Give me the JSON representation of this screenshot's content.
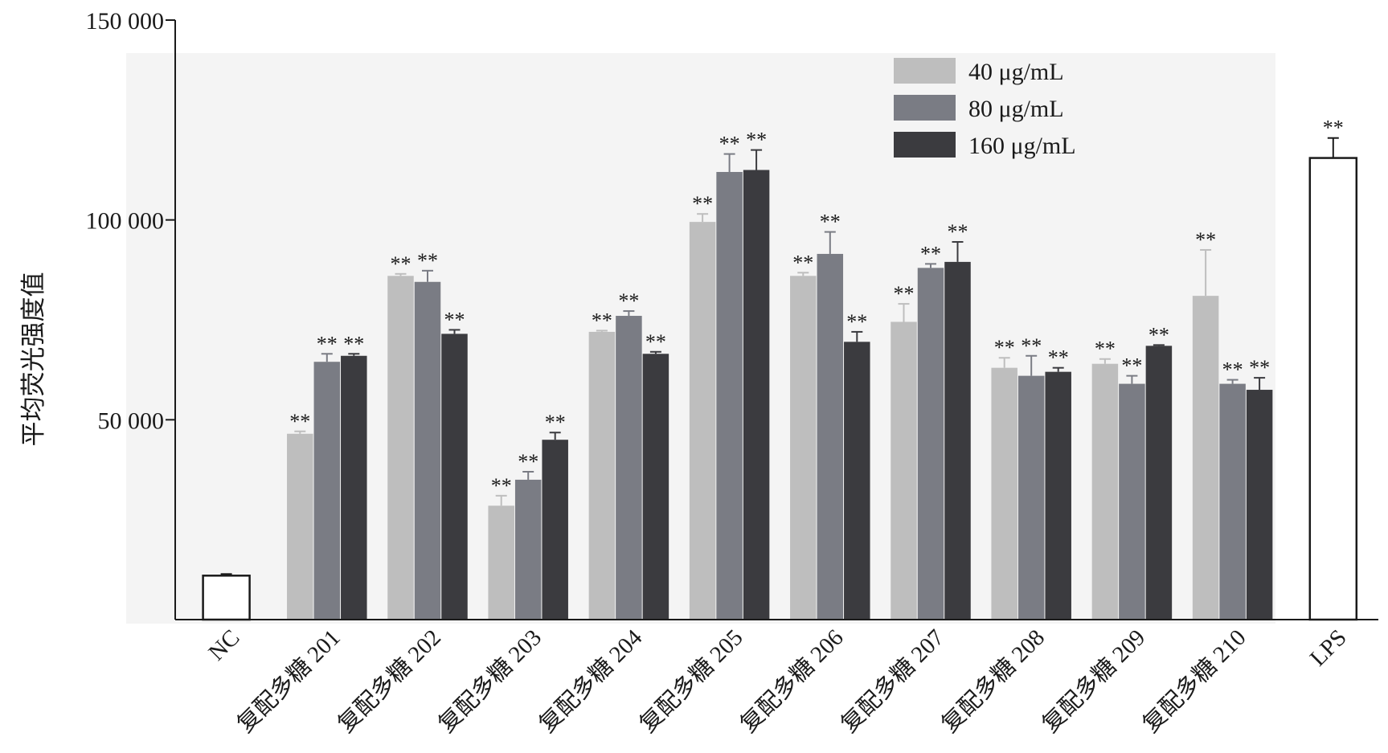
{
  "chart_data": {
    "type": "bar",
    "title": "",
    "xlabel": "",
    "ylabel": "平均荧光强度值",
    "ylim": [
      0,
      150000
    ],
    "yticks": [
      {
        "value": 50000,
        "label": "50 000"
      },
      {
        "value": 100000,
        "label": "100 000"
      },
      {
        "value": 150000,
        "label": "150 000"
      }
    ],
    "categories": [
      "NC",
      "复配多糖 201",
      "复配多糖 202",
      "复配多糖 203",
      "复配多糖 204",
      "复配多糖 205",
      "复配多糖 206",
      "复配多糖 207",
      "复配多糖 208",
      "复配多糖 209",
      "复配多糖 210",
      "LPS"
    ],
    "series": [
      {
        "name": "40 μg/mL",
        "color": "#bebebe",
        "values": [
          null,
          46500,
          86000,
          28500,
          72000,
          99500,
          86000,
          74500,
          63000,
          64000,
          81000,
          null
        ],
        "errors": [
          null,
          600,
          500,
          2500,
          300,
          2000,
          800,
          4500,
          2500,
          1200,
          11500,
          null
        ],
        "sig": [
          null,
          "**",
          "**",
          "**",
          "**",
          "**",
          "**",
          "**",
          "**",
          "**",
          "**",
          null
        ]
      },
      {
        "name": "80 μg/mL",
        "color": "#7a7c84",
        "values": [
          null,
          64500,
          84500,
          35000,
          76000,
          112000,
          91500,
          88000,
          61000,
          59000,
          59000,
          null
        ],
        "errors": [
          null,
          2000,
          2800,
          2000,
          1200,
          4500,
          5500,
          1000,
          5000,
          2000,
          1000,
          null
        ],
        "sig": [
          null,
          "**",
          "**",
          "**",
          "**",
          "**",
          "**",
          "**",
          "**",
          "**",
          "**",
          null
        ]
      },
      {
        "name": "160 μg/mL",
        "color": "#3b3b3f",
        "values": [
          null,
          66000,
          71500,
          45000,
          66500,
          112500,
          69500,
          89500,
          62000,
          68500,
          57500,
          null
        ],
        "errors": [
          null,
          500,
          1000,
          1800,
          500,
          5000,
          2500,
          5000,
          1000,
          200,
          3000,
          null
        ],
        "sig": [
          null,
          "**",
          "**",
          "**",
          "**",
          "**",
          "**",
          "**",
          "**",
          "**",
          "**",
          null
        ]
      },
      {
        "name": "",
        "color": "#ffffff",
        "values": [
          11000,
          null,
          null,
          null,
          null,
          null,
          null,
          null,
          null,
          null,
          null,
          115500
        ],
        "errors": [
          400,
          null,
          null,
          null,
          null,
          null,
          null,
          null,
          null,
          null,
          null,
          5000
        ],
        "sig": [
          null,
          null,
          null,
          null,
          null,
          null,
          null,
          null,
          null,
          null,
          null,
          "**"
        ]
      }
    ],
    "legend": [
      "40 μg/mL",
      "80 μg/mL",
      "160 μg/mL"
    ],
    "legend_position": "top-right",
    "grid": false,
    "plot_background": "#f4f4f4"
  }
}
